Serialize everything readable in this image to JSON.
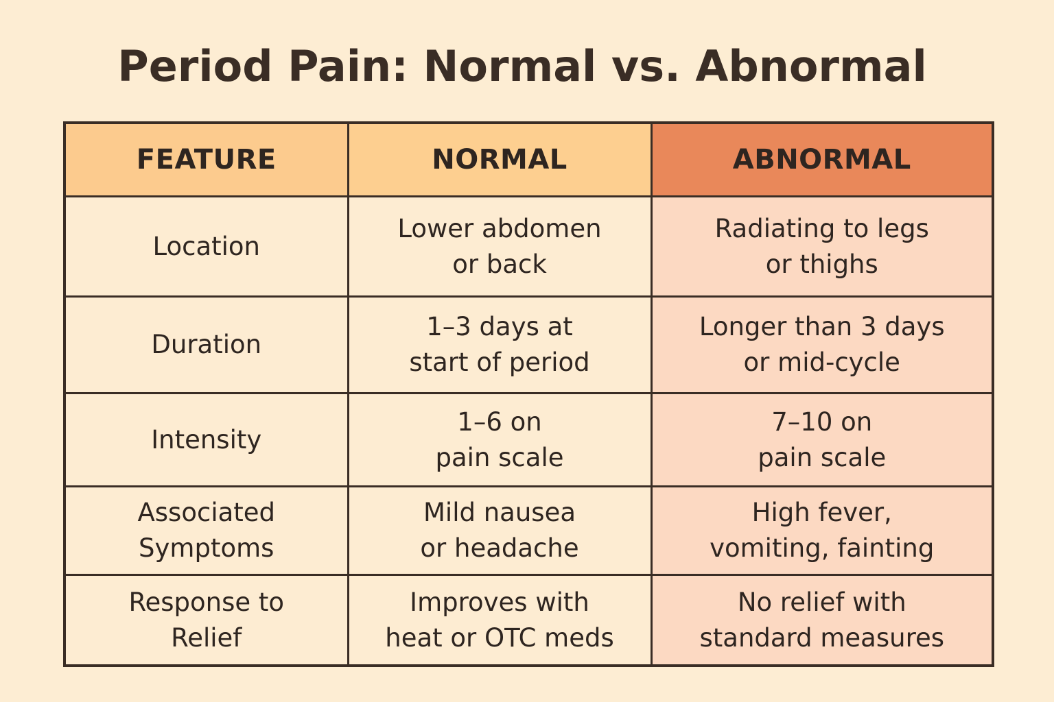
{
  "title": "Period Pain: Normal vs. Abnormal",
  "headers": [
    "FEATURE",
    "NORMAL",
    "ABNORMAL"
  ],
  "rows": [
    {
      "feature": [
        "Location"
      ],
      "normal": [
        "Lower abdomen",
        "or back"
      ],
      "abnormal": [
        "Radiating to legs",
        "or thighs"
      ]
    },
    {
      "feature": [
        "Duration"
      ],
      "normal": [
        "1–3 days at",
        "start of period"
      ],
      "abnormal": [
        "Longer than 3 days",
        "or mid-cycle"
      ]
    },
    {
      "feature": [
        "Intensity"
      ],
      "normal": [
        "1–6 on",
        "pain scale"
      ],
      "abnormal": [
        "7–10 on",
        "pain scale"
      ]
    },
    {
      "feature": [
        "Associated",
        "Symptoms"
      ],
      "normal": [
        "Mild nausea",
        "or headache"
      ],
      "abnormal": [
        "High fever,",
        "vomiting, fainting"
      ]
    },
    {
      "feature": [
        "Response to",
        "Relief"
      ],
      "normal": [
        "Improves with",
        "heat or OTC meds"
      ],
      "abnormal": [
        "No relief with",
        "standard measures"
      ]
    }
  ],
  "colors": {
    "background": "#FDEDD3",
    "header_feature": "#FCCB8E",
    "header_normal": "#FDCF90",
    "header_abnormal": "#E9885A",
    "cell_normal": "#FDECD2",
    "cell_abnormal": "#FCD9C2",
    "border": "#3A2D25"
  }
}
